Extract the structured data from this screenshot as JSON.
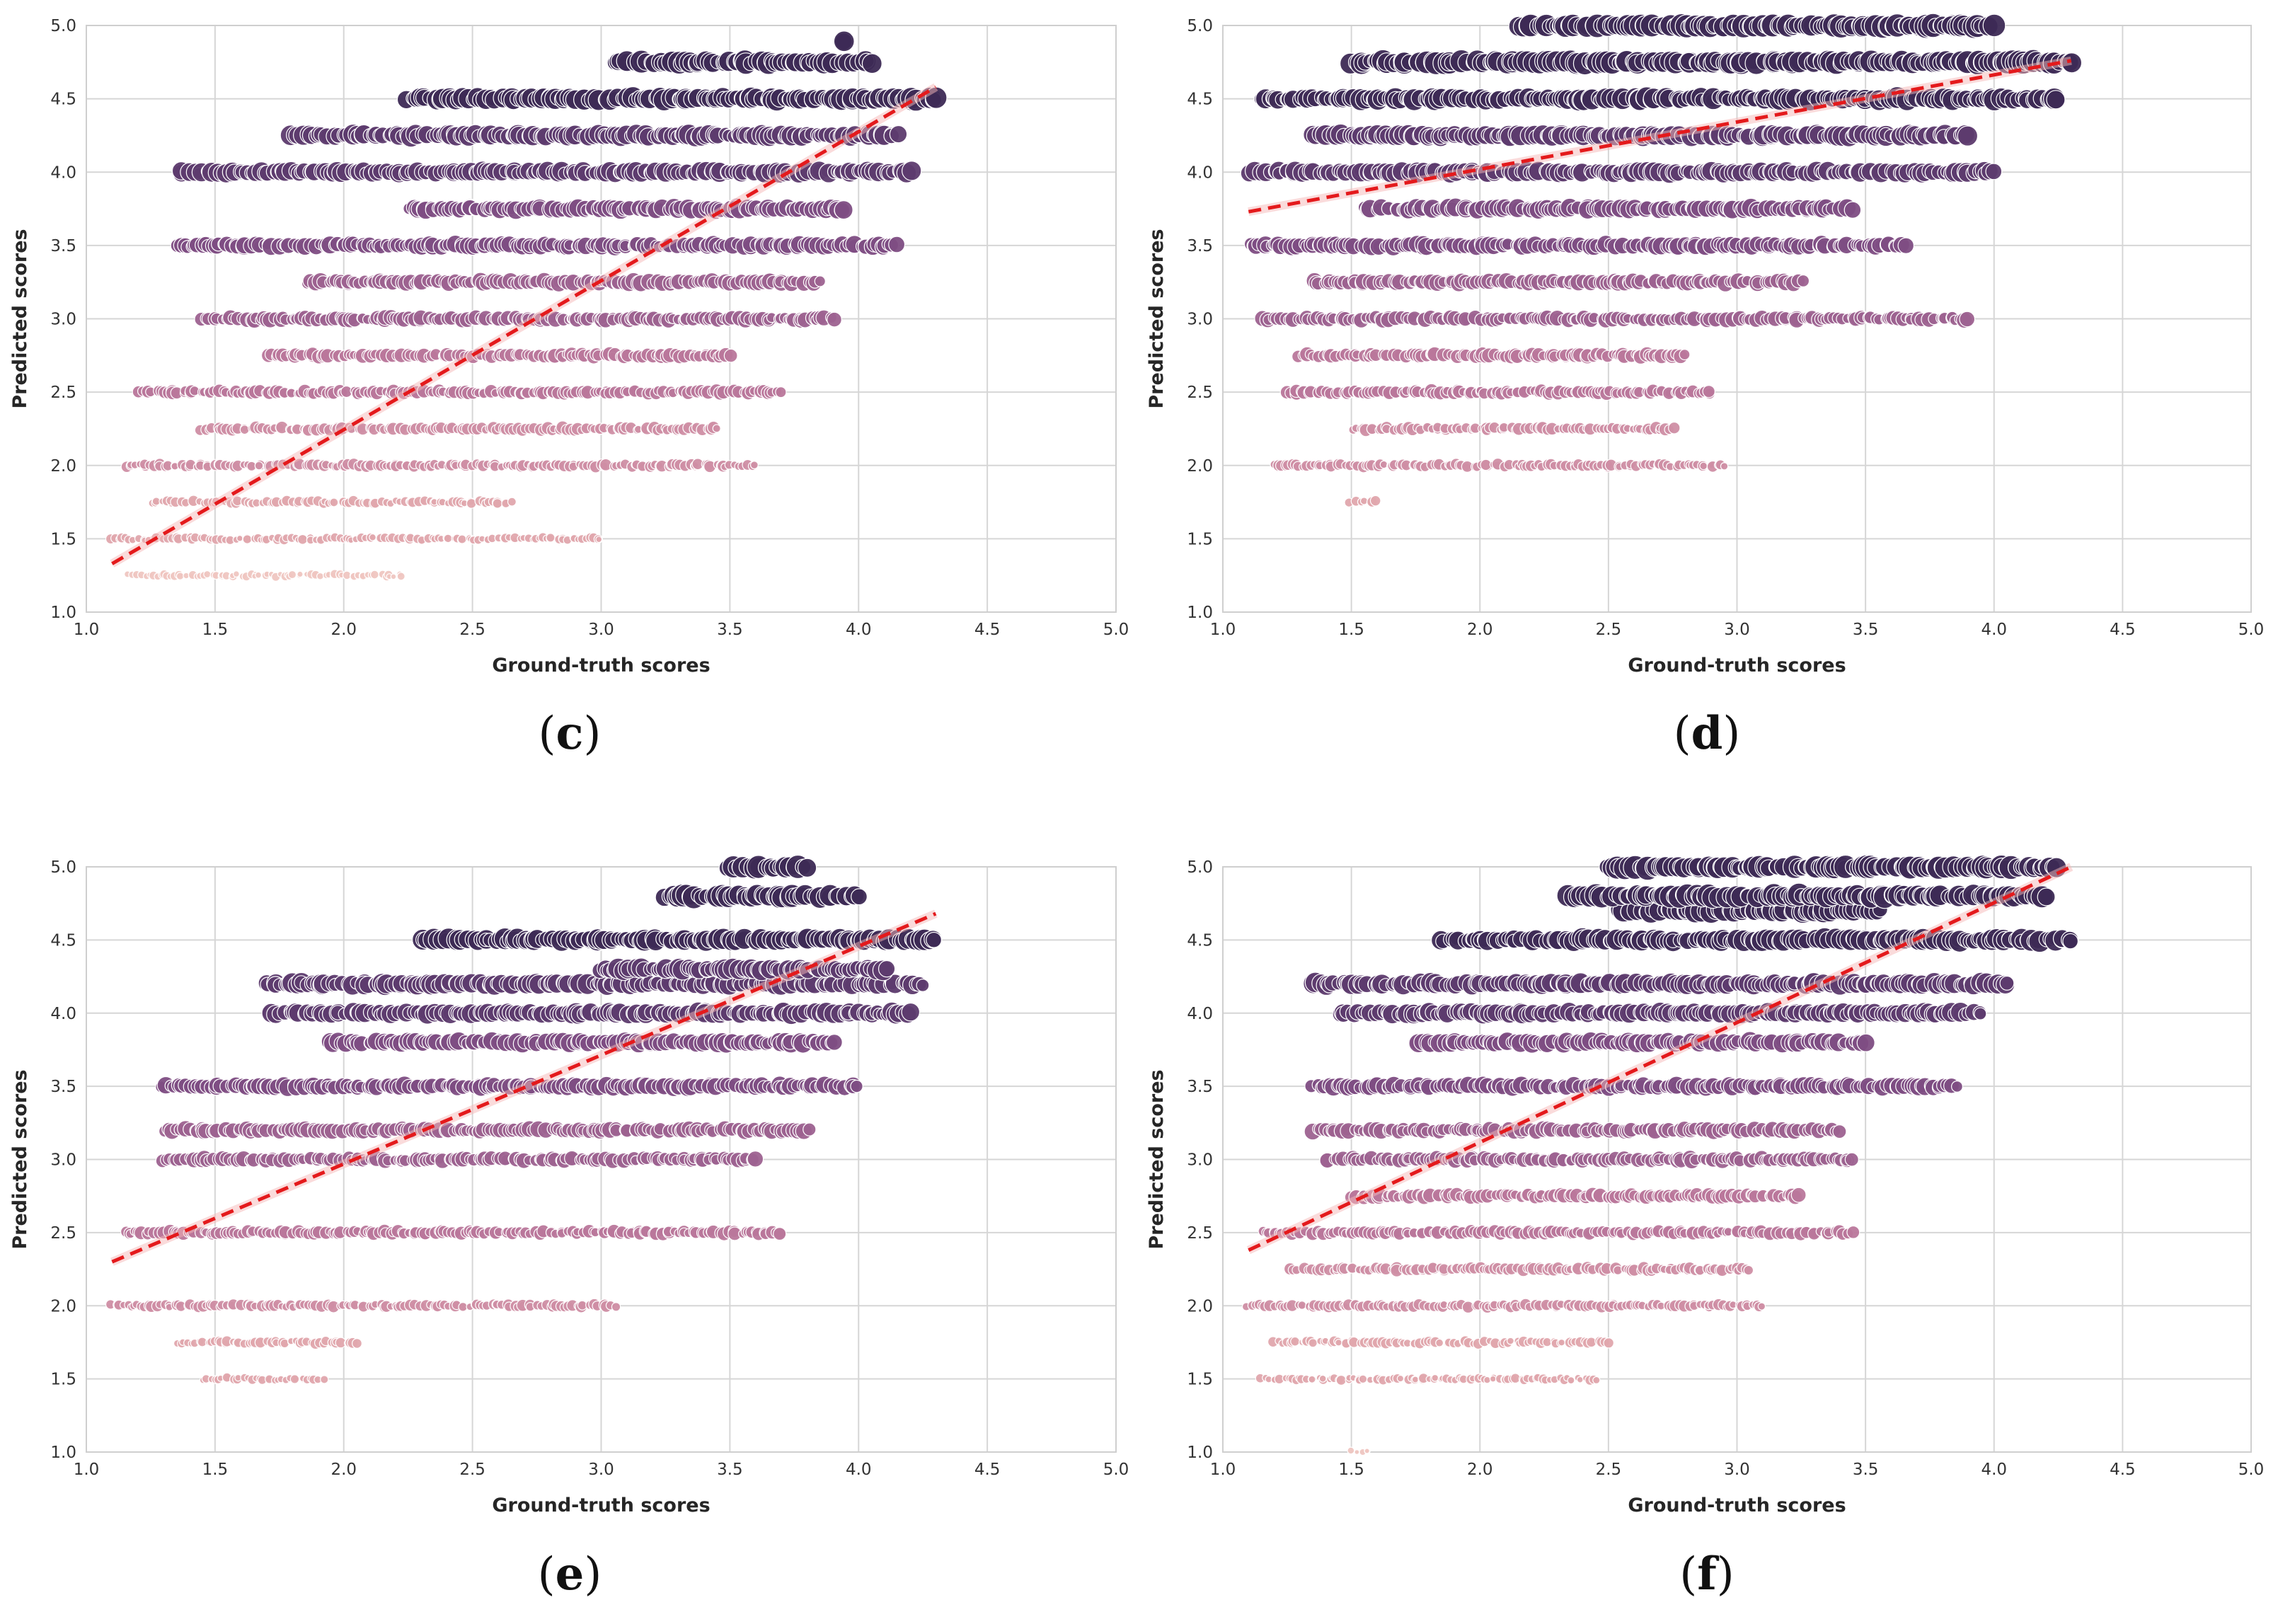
{
  "figure": {
    "description_hidden": false
  },
  "chart_data": [
    {
      "panel": "(c)",
      "type": "scatter",
      "xlabel": "Ground-truth scores",
      "ylabel": "Predicted scores",
      "xlim": [
        1.0,
        5.0
      ],
      "ylim": [
        1.0,
        5.0
      ],
      "xticks": [
        "1.0",
        "1.5",
        "2.0",
        "2.5",
        "3.0",
        "3.5",
        "4.0",
        "4.5",
        "5.0"
      ],
      "yticks": [
        "1.0",
        "1.5",
        "2.0",
        "2.5",
        "3.0",
        "3.5",
        "4.0",
        "4.5",
        "5.0"
      ],
      "grid": true,
      "hue": "predicted score (darker = higher)",
      "regression": {
        "x": [
          1.1,
          4.3
        ],
        "y": [
          1.33,
          4.58
        ],
        "style": "dashed",
        "color": "#e41a1c"
      },
      "bands": [
        {
          "y": 1.25,
          "x": [
            1.17,
            2.23
          ]
        },
        {
          "y": 1.5,
          "x": [
            1.1,
            3.0
          ]
        },
        {
          "y": 1.75,
          "x": [
            1.25,
            2.65
          ]
        },
        {
          "y": 2.0,
          "x": [
            1.15,
            3.6
          ]
        },
        {
          "y": 2.25,
          "x": [
            1.45,
            3.45
          ]
        },
        {
          "y": 2.5,
          "x": [
            1.2,
            3.7
          ]
        },
        {
          "y": 2.75,
          "x": [
            1.7,
            3.5
          ]
        },
        {
          "y": 3.0,
          "x": [
            1.45,
            3.9
          ]
        },
        {
          "y": 3.25,
          "x": [
            1.85,
            3.85
          ]
        },
        {
          "y": 3.5,
          "x": [
            1.35,
            4.15
          ]
        },
        {
          "y": 3.75,
          "x": [
            2.25,
            3.95
          ]
        },
        {
          "y": 4.0,
          "x": [
            1.35,
            4.2
          ]
        },
        {
          "y": 4.25,
          "x": [
            1.8,
            4.15
          ]
        },
        {
          "y": 4.5,
          "x": [
            2.25,
            4.3
          ]
        },
        {
          "y": 4.75,
          "x": [
            3.05,
            4.05
          ]
        },
        {
          "y": 4.9,
          "x": [
            3.95,
            3.95
          ]
        }
      ]
    },
    {
      "panel": "(d)",
      "type": "scatter",
      "xlabel": "Ground-truth scores",
      "ylabel": "Predicted scores",
      "xlim": [
        1.0,
        5.0
      ],
      "ylim": [
        1.0,
        5.0
      ],
      "xticks": [
        "1.0",
        "1.5",
        "2.0",
        "2.5",
        "3.0",
        "3.5",
        "4.0",
        "4.5",
        "5.0"
      ],
      "yticks": [
        "1.0",
        "1.5",
        "2.0",
        "2.5",
        "3.0",
        "3.5",
        "4.0",
        "4.5",
        "5.0"
      ],
      "grid": true,
      "hue": "predicted score (darker = higher)",
      "regression": {
        "x": [
          1.1,
          4.3
        ],
        "y": [
          3.73,
          4.76
        ],
        "style": "dashed",
        "color": "#e41a1c"
      },
      "bands": [
        {
          "y": 1.75,
          "x": [
            1.5,
            1.6
          ]
        },
        {
          "y": 2.0,
          "x": [
            1.2,
            2.95
          ]
        },
        {
          "y": 2.25,
          "x": [
            1.5,
            2.75
          ]
        },
        {
          "y": 2.5,
          "x": [
            1.25,
            2.9
          ]
        },
        {
          "y": 2.75,
          "x": [
            1.3,
            2.8
          ]
        },
        {
          "y": 3.0,
          "x": [
            1.15,
            3.9
          ]
        },
        {
          "y": 3.25,
          "x": [
            1.35,
            3.25
          ]
        },
        {
          "y": 3.5,
          "x": [
            1.1,
            3.65
          ]
        },
        {
          "y": 3.75,
          "x": [
            1.55,
            3.45
          ]
        },
        {
          "y": 4.0,
          "x": [
            1.1,
            4.0
          ]
        },
        {
          "y": 4.25,
          "x": [
            1.35,
            3.9
          ]
        },
        {
          "y": 4.5,
          "x": [
            1.15,
            4.25
          ]
        },
        {
          "y": 4.75,
          "x": [
            1.5,
            4.3
          ]
        },
        {
          "y": 5.0,
          "x": [
            2.15,
            4.0
          ]
        }
      ]
    },
    {
      "panel": "(e)",
      "type": "scatter",
      "xlabel": "Ground-truth scores",
      "ylabel": "Predicted scores",
      "xlim": [
        1.0,
        5.0
      ],
      "ylim": [
        1.0,
        5.0
      ],
      "xticks": [
        "1.0",
        "1.5",
        "2.0",
        "2.5",
        "3.0",
        "3.5",
        "4.0",
        "4.5",
        "5.0"
      ],
      "yticks": [
        "1.0",
        "1.5",
        "2.0",
        "2.5",
        "3.0",
        "3.5",
        "4.0",
        "4.5",
        "5.0"
      ],
      "grid": true,
      "hue": "predicted score (darker = higher)",
      "regression": {
        "x": [
          1.1,
          4.3
        ],
        "y": [
          2.3,
          4.68
        ],
        "style": "dashed",
        "color": "#e41a1c"
      },
      "bands": [
        {
          "y": 1.5,
          "x": [
            1.45,
            1.92
          ]
        },
        {
          "y": 1.75,
          "x": [
            1.35,
            2.05
          ]
        },
        {
          "y": 2.0,
          "x": [
            1.1,
            3.05
          ]
        },
        {
          "y": 2.5,
          "x": [
            1.15,
            3.7
          ]
        },
        {
          "y": 3.0,
          "x": [
            1.3,
            3.6
          ]
        },
        {
          "y": 3.2,
          "x": [
            1.3,
            3.8
          ]
        },
        {
          "y": 3.5,
          "x": [
            1.3,
            4.0
          ]
        },
        {
          "y": 3.8,
          "x": [
            1.95,
            3.9
          ]
        },
        {
          "y": 4.0,
          "x": [
            1.7,
            4.2
          ]
        },
        {
          "y": 4.2,
          "x": [
            1.7,
            4.25
          ]
        },
        {
          "y": 4.3,
          "x": [
            3.0,
            4.1
          ]
        },
        {
          "y": 4.5,
          "x": [
            2.3,
            4.3
          ]
        },
        {
          "y": 4.8,
          "x": [
            3.25,
            4.0
          ]
        },
        {
          "y": 5.0,
          "x": [
            3.5,
            3.8
          ]
        }
      ]
    },
    {
      "panel": "(f)",
      "type": "scatter",
      "xlabel": "Ground-truth scores",
      "ylabel": "Predicted scores",
      "xlim": [
        1.0,
        5.0
      ],
      "ylim": [
        1.0,
        5.0
      ],
      "xticks": [
        "1.0",
        "1.5",
        "2.0",
        "2.5",
        "3.0",
        "3.5",
        "4.0",
        "4.5",
        "5.0"
      ],
      "yticks": [
        "1.0",
        "1.5",
        "2.0",
        "2.5",
        "3.0",
        "3.5",
        "4.0",
        "4.5",
        "5.0"
      ],
      "grid": true,
      "hue": "predicted score (darker = higher)",
      "regression": {
        "x": [
          1.1,
          4.3
        ],
        "y": [
          2.38,
          5.0
        ],
        "style": "dashed",
        "color": "#e41a1c"
      },
      "bands": [
        {
          "y": 1.0,
          "x": [
            1.5,
            1.57
          ]
        },
        {
          "y": 1.5,
          "x": [
            1.15,
            2.45
          ]
        },
        {
          "y": 1.75,
          "x": [
            1.2,
            2.5
          ]
        },
        {
          "y": 2.0,
          "x": [
            1.1,
            3.1
          ]
        },
        {
          "y": 2.25,
          "x": [
            1.25,
            3.05
          ]
        },
        {
          "y": 2.5,
          "x": [
            1.15,
            3.45
          ]
        },
        {
          "y": 2.75,
          "x": [
            1.5,
            3.25
          ]
        },
        {
          "y": 3.0,
          "x": [
            1.4,
            3.45
          ]
        },
        {
          "y": 3.2,
          "x": [
            1.35,
            3.4
          ]
        },
        {
          "y": 3.5,
          "x": [
            1.35,
            3.85
          ]
        },
        {
          "y": 3.8,
          "x": [
            1.75,
            3.5
          ]
        },
        {
          "y": 4.0,
          "x": [
            1.45,
            3.95
          ]
        },
        {
          "y": 4.2,
          "x": [
            1.35,
            4.05
          ]
        },
        {
          "y": 4.5,
          "x": [
            1.85,
            4.3
          ]
        },
        {
          "y": 4.7,
          "x": [
            2.55,
            3.55
          ]
        },
        {
          "y": 4.8,
          "x": [
            2.35,
            4.2
          ]
        },
        {
          "y": 5.0,
          "x": [
            2.5,
            4.25
          ]
        }
      ]
    }
  ]
}
